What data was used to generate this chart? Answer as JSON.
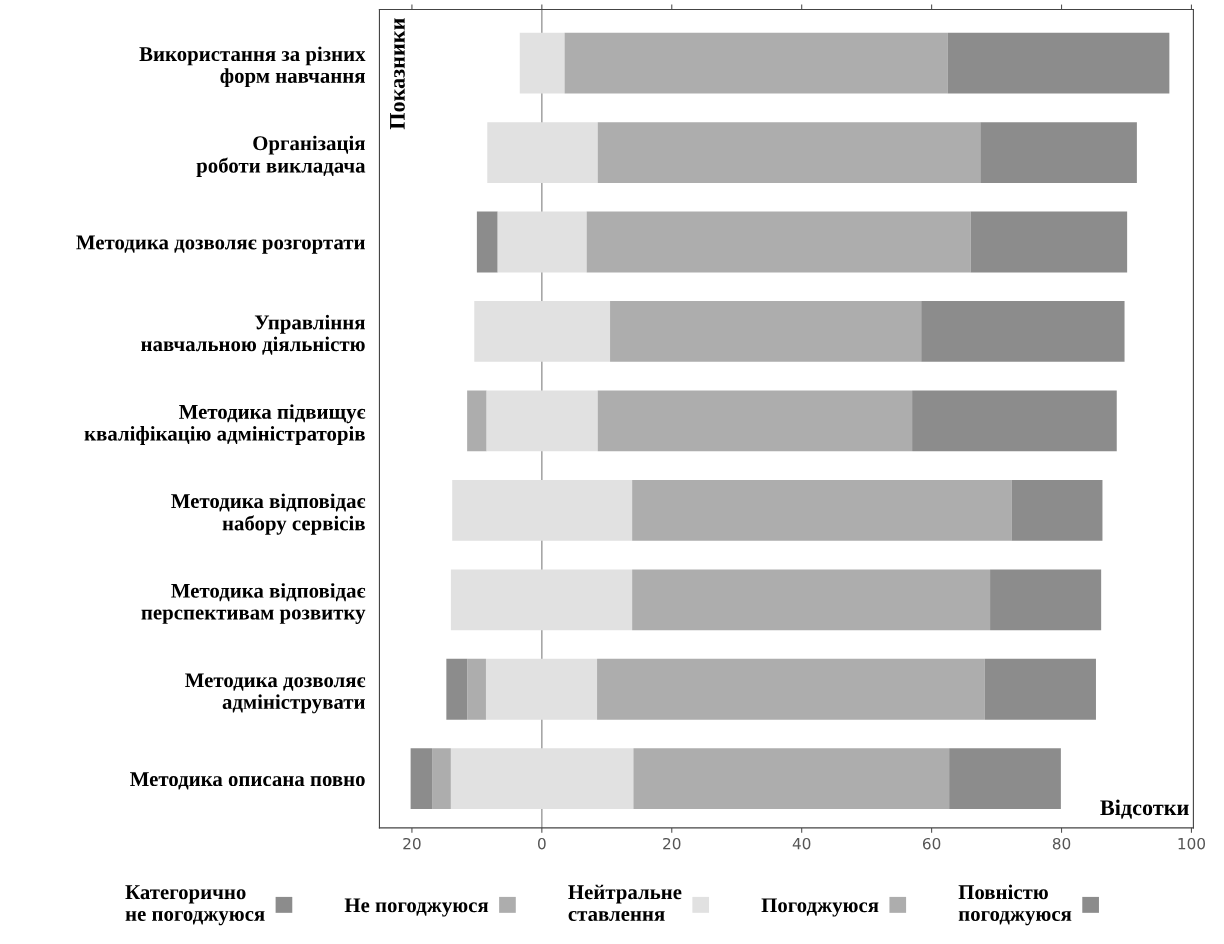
{
  "chart_data": {
    "type": "bar",
    "orientation": "horizontal",
    "xlabel": "Відсотки",
    "ylabel": "Показники",
    "categories": [
      "Використання за різних\nформ навчання",
      "Організація\nроботи викладача",
      "Методика дозволяє розгортати",
      "Управління\nнавчальною діяльністю",
      "Методика підвищує\nкваліфікацію адміністраторів",
      "Методика відповідає\nнабору сервісів",
      "Методика відповідає\nперспективам розвитку",
      "Методика дозволяє\nадмініструвати",
      "Методика описана повно"
    ],
    "series": [
      {
        "name": "Категорично\nне погоджуюся",
        "color": "#8c8c8c",
        "values": [
          null,
          null,
          3.2,
          null,
          null,
          null,
          null,
          3.2,
          3.3
        ],
        "base": [
          null,
          null,
          -10.0,
          null,
          null,
          null,
          null,
          -14.7,
          -20.2
        ]
      },
      {
        "name": "Не погоджуюся",
        "color": "#adadad",
        "values": [
          null,
          null,
          null,
          null,
          3.0,
          null,
          null,
          2.9,
          2.9
        ],
        "base": [
          null,
          null,
          null,
          null,
          -11.5,
          null,
          null,
          -11.5,
          -16.9
        ]
      },
      {
        "name": "Нейтральне\nставлення",
        "color": "#e1e1e1",
        "values": [
          6.9,
          17.0,
          13.7,
          20.9,
          17.1,
          27.7,
          27.9,
          17.1,
          28.1
        ],
        "base": [
          -3.4,
          -8.4,
          -6.8,
          -10.4,
          -8.5,
          -13.8,
          -14.0,
          -8.6,
          -14.0
        ]
      },
      {
        "name": "Погоджуюся",
        "color": "#adadad",
        "values": [
          59.0,
          58.9,
          59.1,
          47.9,
          48.4,
          58.4,
          55.1,
          59.7,
          48.6
        ],
        "base": [
          3.5,
          8.6,
          6.9,
          10.5,
          8.6,
          13.9,
          13.9,
          8.5,
          14.1
        ]
      },
      {
        "name": "Повністю\nпогоджуюся",
        "color": "#8c8c8c",
        "values": [
          34.1,
          24.1,
          24.1,
          31.3,
          31.5,
          14.0,
          17.1,
          17.1,
          17.2
        ],
        "base": [
          62.5,
          67.5,
          66.0,
          58.4,
          57.0,
          72.3,
          69.0,
          68.2,
          62.7
        ]
      }
    ],
    "xlim": [
      -25,
      100.3
    ],
    "xticks": [
      {
        "value": -20,
        "label": "20"
      },
      0,
      20,
      40,
      60,
      80,
      100
    ],
    "ref_lines": [
      {
        "axis": "x",
        "value": 0,
        "color": "#999999"
      }
    ],
    "legend": "bottom"
  }
}
